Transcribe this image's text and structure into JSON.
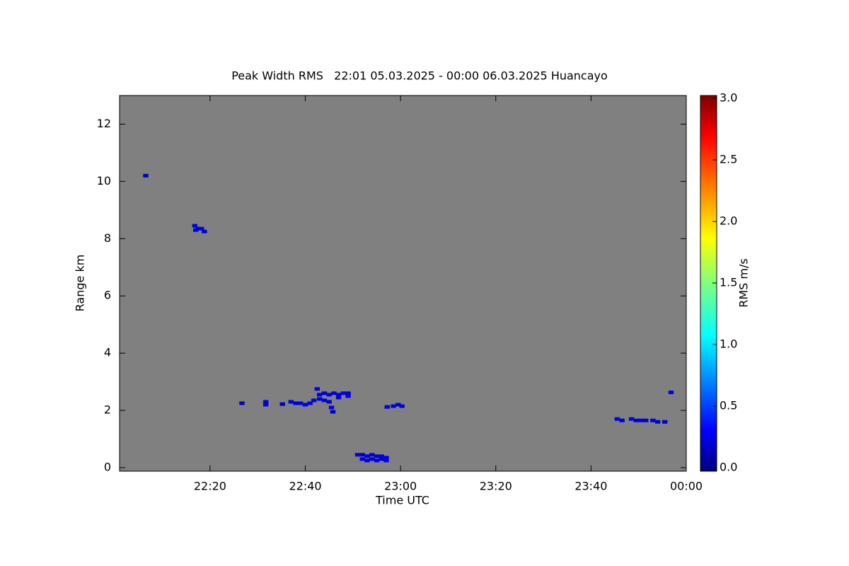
{
  "chart_data": {
    "type": "heatmap",
    "title": "Peak Width RMS   22:01 05.03.2025 - 00:00 06.03.2025 Huancayo",
    "x_label": "Time UTC",
    "y_label": "Range km",
    "colorbar_label": "RMS m/s",
    "colormap": "jet",
    "background": "#808080",
    "xlim": [
      1,
      120
    ],
    "xticks": [
      {
        "value": 20,
        "label": "22:20"
      },
      {
        "value": 40,
        "label": "22:40"
      },
      {
        "value": 60,
        "label": "23:00"
      },
      {
        "value": 80,
        "label": "23:20"
      },
      {
        "value": 100,
        "label": "23:40"
      },
      {
        "value": 120,
        "label": "00:00"
      }
    ],
    "ylim": [
      0,
      13
    ],
    "yticks": [
      0,
      2,
      4,
      6,
      8,
      10,
      12
    ],
    "clim": [
      0,
      3
    ],
    "cticks": [
      {
        "value": 0,
        "label": "0.0"
      },
      {
        "value": 0.5,
        "label": "0.5"
      },
      {
        "value": 1,
        "label": "1.0"
      },
      {
        "value": 1.5,
        "label": "1.5"
      },
      {
        "value": 2,
        "label": "2.0"
      },
      {
        "value": 2.5,
        "label": "2.5"
      },
      {
        "value": 3,
        "label": "3.0"
      }
    ],
    "x": [
      6.5,
      16.8,
      17.5,
      18.2,
      18.8,
      17.0,
      26.7,
      31.7,
      31.7,
      35.2,
      37,
      38,
      39,
      40,
      41,
      41.8,
      42.5,
      43,
      44,
      45,
      46,
      47,
      48,
      49,
      45,
      45.5,
      45.8,
      43,
      44,
      47,
      49,
      51,
      52,
      53,
      54,
      55,
      56,
      57,
      52,
      53,
      54,
      55,
      56,
      57,
      57.2,
      58.5,
      59.5,
      60.3,
      105.5,
      106.5,
      108.5,
      109.5,
      110.5,
      111.5,
      113,
      114,
      115.5,
      116.8
    ],
    "y": [
      10.2,
      8.45,
      8.35,
      8.35,
      8.25,
      8.3,
      2.25,
      2.3,
      2.2,
      2.22,
      2.3,
      2.25,
      2.25,
      2.2,
      2.25,
      2.35,
      2.75,
      2.55,
      2.6,
      2.55,
      2.6,
      2.55,
      2.6,
      2.5,
      2.3,
      2.1,
      1.95,
      2.4,
      2.35,
      2.45,
      2.6,
      0.45,
      0.45,
      0.4,
      0.45,
      0.4,
      0.4,
      0.35,
      0.3,
      0.25,
      0.3,
      0.25,
      0.3,
      0.25,
      2.12,
      2.15,
      2.2,
      2.15,
      1.7,
      1.65,
      1.7,
      1.65,
      1.65,
      1.65,
      1.65,
      1.6,
      1.6,
      2.63
    ],
    "values": [
      0.2,
      0.3,
      0.25,
      0.3,
      0.2,
      0.25,
      0.2,
      0.3,
      0.25,
      0.2,
      0.3,
      0.25,
      0.3,
      0.3,
      0.25,
      0.3,
      0.3,
      0.3,
      0.25,
      0.3,
      0.3,
      0.25,
      0.3,
      0.3,
      0.25,
      0.3,
      0.2,
      0.3,
      0.3,
      0.25,
      0.25,
      0.3,
      0.25,
      0.3,
      0.3,
      0.25,
      0.3,
      0.3,
      0.25,
      0.3,
      0.25,
      0.3,
      0.25,
      0.3,
      0.25,
      0.3,
      0.3,
      0.25,
      0.3,
      0.25,
      0.3,
      0.25,
      0.3,
      0.25,
      0.3,
      0.25,
      0.2,
      0.3
    ]
  }
}
